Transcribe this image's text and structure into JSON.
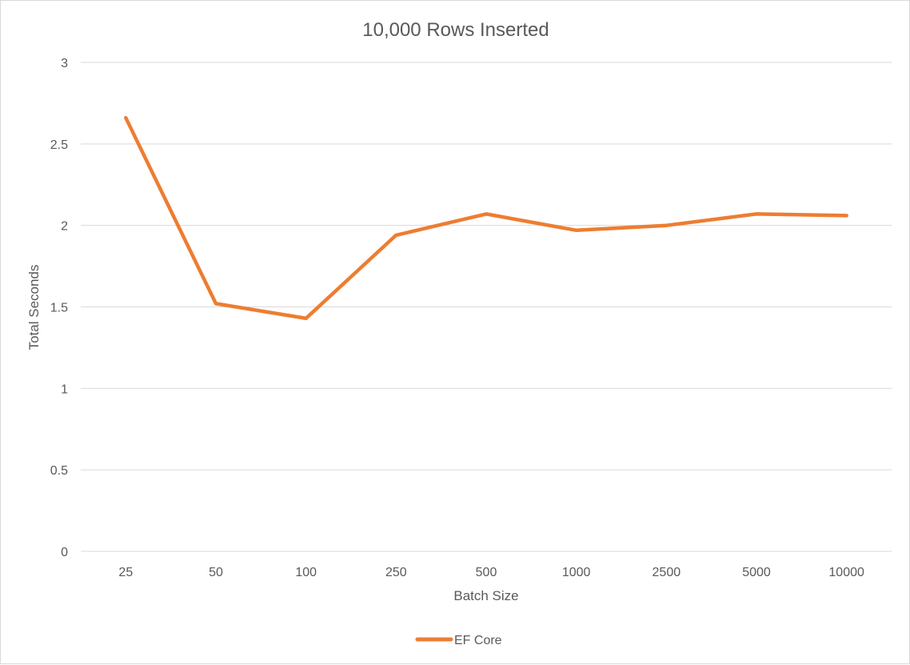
{
  "chart_data": {
    "type": "line",
    "title": "10,000 Rows Inserted",
    "xlabel": "Batch Size",
    "ylabel": "Total Seconds",
    "categories": [
      "25",
      "50",
      "100",
      "250",
      "500",
      "1000",
      "2500",
      "5000",
      "10000"
    ],
    "series": [
      {
        "name": "EF Core",
        "color": "#ED7D31",
        "values": [
          2.66,
          1.52,
          1.43,
          1.94,
          2.07,
          1.97,
          2.0,
          2.07,
          2.06
        ]
      }
    ],
    "ylim": [
      0,
      3
    ],
    "yticks": [
      "0",
      "0.5",
      "1",
      "1.5",
      "2",
      "2.5",
      "3"
    ],
    "grid": true,
    "legend_position": "bottom"
  }
}
